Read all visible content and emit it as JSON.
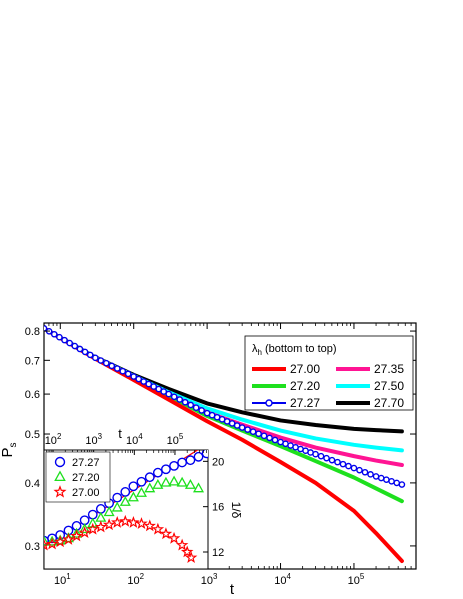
{
  "chart_data": [
    {
      "type": "line",
      "role": "main",
      "xlabel": "t",
      "ylabel_main": "P",
      "ylabel_sub": "s",
      "x_scale": "log",
      "y_scale": "log",
      "xlim": [
        6,
        700000
      ],
      "ylim": [
        0.27,
        0.83
      ],
      "x_ticks": [
        10,
        100,
        1000,
        10000,
        100000
      ],
      "x_tick_labels": [
        {
          "base": "10",
          "exp": "1"
        },
        {
          "base": "10",
          "exp": "2"
        },
        {
          "base": "10",
          "exp": "3"
        },
        {
          "base": "10",
          "exp": "4"
        },
        {
          "base": "10",
          "exp": "5"
        }
      ],
      "y_ticks": [
        0.3,
        0.4,
        0.5,
        0.6,
        0.7,
        0.8
      ],
      "y_tick_labels": [
        "0.3",
        "0.4",
        "0.5",
        "0.6",
        "0.7",
        "0.8"
      ],
      "legend": {
        "placement": "top-right",
        "title_symbol": "λ",
        "title_sub": "h",
        "title_rest": " (bottom to top)"
      },
      "series": [
        {
          "name": "27.00",
          "color": "#ff0000",
          "style": "line",
          "x": [
            6,
            30,
            100,
            300,
            1000,
            3000,
            10000,
            30000,
            100000,
            200000,
            450000
          ],
          "y": [
            0.81,
            0.705,
            0.64,
            0.585,
            0.53,
            0.487,
            0.44,
            0.4,
            0.352,
            0.318,
            0.28
          ]
        },
        {
          "name": "27.35",
          "color": "#ff1493",
          "style": "line",
          "x": [
            6,
            30,
            100,
            300,
            1000,
            3000,
            10000,
            30000,
            100000,
            200000,
            450000
          ],
          "y": [
            0.81,
            0.708,
            0.65,
            0.6,
            0.552,
            0.522,
            0.492,
            0.47,
            0.452,
            0.443,
            0.434
          ]
        },
        {
          "name": "27.20",
          "color": "#1ee01e",
          "style": "line",
          "x": [
            6,
            30,
            100,
            300,
            1000,
            3000,
            10000,
            30000,
            100000,
            200000,
            450000
          ],
          "y": [
            0.81,
            0.707,
            0.648,
            0.596,
            0.543,
            0.508,
            0.473,
            0.442,
            0.41,
            0.39,
            0.368
          ]
        },
        {
          "name": "27.50",
          "color": "#00ffff",
          "style": "line",
          "x": [
            6,
            30,
            100,
            300,
            1000,
            3000,
            10000,
            30000,
            100000,
            200000,
            450000
          ],
          "y": [
            0.81,
            0.709,
            0.652,
            0.605,
            0.562,
            0.534,
            0.508,
            0.49,
            0.476,
            0.47,
            0.464
          ]
        },
        {
          "name": "27.27",
          "color": "#0000ee",
          "style": "line+circle",
          "x": [
            6,
            30,
            100,
            300,
            1000,
            3000,
            10000,
            30000,
            100000,
            200000,
            450000
          ],
          "y": [
            0.81,
            0.708,
            0.65,
            0.6,
            0.55,
            0.515,
            0.482,
            0.456,
            0.428,
            0.412,
            0.397
          ]
        },
        {
          "name": "27.70",
          "color": "#000000",
          "style": "line",
          "x": [
            6,
            30,
            100,
            300,
            1000,
            3000,
            10000,
            30000,
            100000,
            200000,
            450000
          ],
          "y": [
            0.81,
            0.71,
            0.655,
            0.614,
            0.575,
            0.552,
            0.532,
            0.521,
            0.512,
            0.509,
            0.506
          ]
        }
      ]
    },
    {
      "type": "scatter",
      "role": "inset",
      "xlabel": "t",
      "ylabel": "1/δ",
      "x_scale": "log",
      "xlim": [
        60,
        650000
      ],
      "ylim": [
        10.5,
        21
      ],
      "x_ticks": [
        100,
        1000,
        10000,
        100000
      ],
      "x_tick_labels": [
        {
          "base": "10",
          "exp": "2"
        },
        {
          "base": "10",
          "exp": "3"
        },
        {
          "base": "10",
          "exp": "4"
        },
        {
          "base": "10",
          "exp": "5"
        }
      ],
      "y_ticks": [
        12,
        16,
        20
      ],
      "y_tick_labels": [
        "12",
        "16",
        "20"
      ],
      "legend": {
        "placement": "top-left"
      },
      "series": [
        {
          "name": "27.27",
          "color": "#0000ee",
          "marker": "circle",
          "x": [
            60,
            95,
            150,
            240,
            380,
            600,
            950,
            1500,
            2400,
            3800,
            6000,
            9500,
            15000,
            24000,
            38000,
            60000,
            95000,
            150000,
            240000,
            380000,
            600000
          ],
          "y": [
            13.0,
            13.2,
            13.5,
            13.9,
            14.3,
            14.8,
            15.3,
            15.8,
            16.3,
            16.8,
            17.3,
            17.8,
            18.2,
            18.6,
            19.0,
            19.3,
            19.6,
            19.9,
            20.1,
            20.4,
            20.7
          ]
        },
        {
          "name": "27.20",
          "color": "#1ee01e",
          "marker": "triangle",
          "x": [
            60,
            95,
            150,
            240,
            380,
            600,
            950,
            1500,
            2400,
            3800,
            6000,
            9500,
            15000,
            24000,
            38000,
            60000,
            95000,
            150000,
            240000,
            380000
          ],
          "y": [
            12.9,
            12.9,
            13.0,
            13.2,
            13.6,
            14.0,
            14.5,
            15.0,
            15.5,
            15.9,
            16.4,
            16.8,
            17.2,
            17.6,
            17.9,
            18.1,
            18.2,
            18.1,
            17.9,
            17.6
          ]
        },
        {
          "name": "27.00",
          "color": "#ff0000",
          "marker": "star",
          "x": [
            60,
            95,
            150,
            240,
            380,
            600,
            950,
            1500,
            2400,
            3800,
            6000,
            9500,
            15000,
            24000,
            38000,
            60000,
            95000,
            150000,
            200000,
            250000
          ],
          "y": [
            12.6,
            12.7,
            12.9,
            13.1,
            13.4,
            13.7,
            14.0,
            14.2,
            14.4,
            14.6,
            14.7,
            14.6,
            14.5,
            14.3,
            14.0,
            13.6,
            13.2,
            12.6,
            12.0,
            11.5
          ]
        }
      ],
      "trend_line": {
        "color": "#ff0000",
        "x": [
          60,
          600000
        ],
        "y": [
          12.5,
          21.5
        ]
      }
    }
  ]
}
